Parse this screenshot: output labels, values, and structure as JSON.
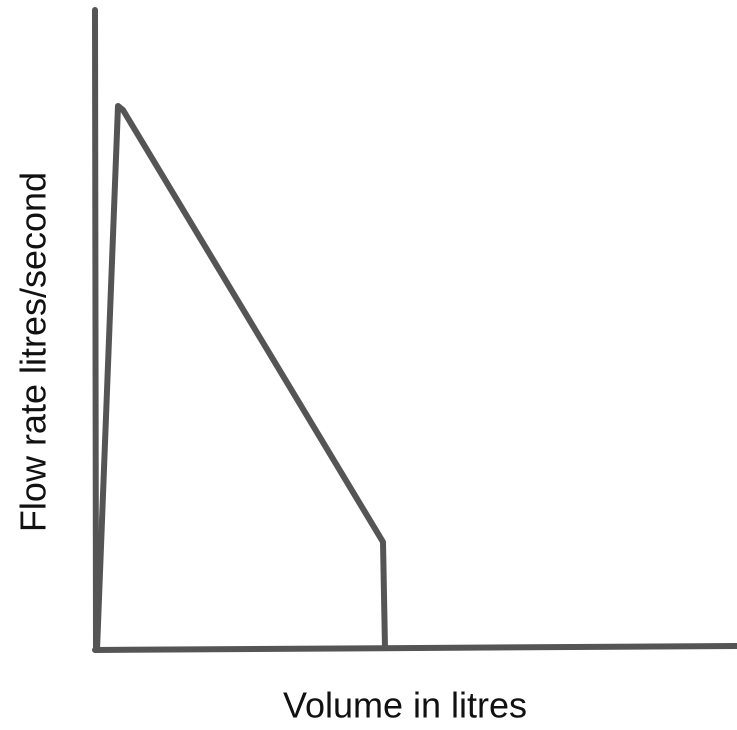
{
  "diagram": {
    "x_axis_label": "Volume in litres",
    "y_axis_label": "Flow rate litres/second"
  }
}
